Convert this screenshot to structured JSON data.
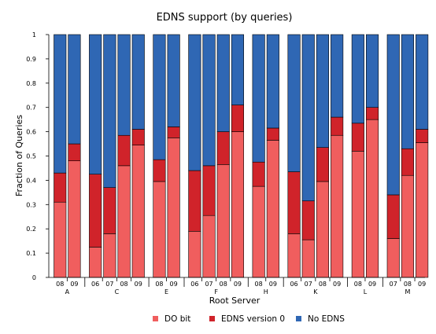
{
  "chart_data": {
    "type": "bar",
    "stacked": true,
    "title": "EDNS support (by queries)",
    "xlabel": "Root Server",
    "ylabel": "Fraction of Queries",
    "ylim": [
      0,
      1
    ],
    "yticks": [
      "0",
      "0.1",
      "0.2",
      "0.3",
      "0.4",
      "0.5",
      "0.6",
      "0.7",
      "0.8",
      "0.9",
      "1"
    ],
    "grid": false,
    "legend_position": "bottom",
    "series": [
      {
        "name": "DO bit",
        "color": "#f05e5e"
      },
      {
        "name": "EDNS version 0",
        "color": "#d0232a"
      },
      {
        "name": "No EDNS",
        "color": "#2f67b4"
      }
    ],
    "groups": [
      {
        "server": "A",
        "bars": [
          {
            "year": "08",
            "do_bit": 0.31,
            "edns0": 0.12,
            "no_edns": 0.57
          },
          {
            "year": "09",
            "do_bit": 0.48,
            "edns0": 0.07,
            "no_edns": 0.45
          }
        ]
      },
      {
        "server": "C",
        "bars": [
          {
            "year": "06",
            "do_bit": 0.125,
            "edns0": 0.3,
            "no_edns": 0.575
          },
          {
            "year": "07",
            "do_bit": 0.18,
            "edns0": 0.19,
            "no_edns": 0.63
          },
          {
            "year": "08",
            "do_bit": 0.46,
            "edns0": 0.125,
            "no_edns": 0.415
          },
          {
            "year": "09",
            "do_bit": 0.545,
            "edns0": 0.065,
            "no_edns": 0.39
          }
        ]
      },
      {
        "server": "E",
        "bars": [
          {
            "year": "08",
            "do_bit": 0.395,
            "edns0": 0.09,
            "no_edns": 0.515
          },
          {
            "year": "09",
            "do_bit": 0.575,
            "edns0": 0.045,
            "no_edns": 0.38
          }
        ]
      },
      {
        "server": "F",
        "bars": [
          {
            "year": "06",
            "do_bit": 0.19,
            "edns0": 0.25,
            "no_edns": 0.56
          },
          {
            "year": "07",
            "do_bit": 0.255,
            "edns0": 0.205,
            "no_edns": 0.54
          },
          {
            "year": "08",
            "do_bit": 0.465,
            "edns0": 0.135,
            "no_edns": 0.4
          },
          {
            "year": "09",
            "do_bit": 0.6,
            "edns0": 0.11,
            "no_edns": 0.29
          }
        ]
      },
      {
        "server": "H",
        "bars": [
          {
            "year": "08",
            "do_bit": 0.375,
            "edns0": 0.1,
            "no_edns": 0.525
          },
          {
            "year": "09",
            "do_bit": 0.565,
            "edns0": 0.05,
            "no_edns": 0.385
          }
        ]
      },
      {
        "server": "K",
        "bars": [
          {
            "year": "06",
            "do_bit": 0.18,
            "edns0": 0.255,
            "no_edns": 0.565
          },
          {
            "year": "07",
            "do_bit": 0.155,
            "edns0": 0.16,
            "no_edns": 0.685
          },
          {
            "year": "08",
            "do_bit": 0.395,
            "edns0": 0.14,
            "no_edns": 0.465
          },
          {
            "year": "09",
            "do_bit": 0.585,
            "edns0": 0.075,
            "no_edns": 0.34
          }
        ]
      },
      {
        "server": "L",
        "bars": [
          {
            "year": "08",
            "do_bit": 0.52,
            "edns0": 0.115,
            "no_edns": 0.365
          },
          {
            "year": "09",
            "do_bit": 0.65,
            "edns0": 0.05,
            "no_edns": 0.3
          }
        ]
      },
      {
        "server": "M",
        "bars": [
          {
            "year": "07",
            "do_bit": 0.16,
            "edns0": 0.18,
            "no_edns": 0.66
          },
          {
            "year": "08",
            "do_bit": 0.42,
            "edns0": 0.11,
            "no_edns": 0.47
          },
          {
            "year": "09",
            "do_bit": 0.555,
            "edns0": 0.055,
            "no_edns": 0.39
          }
        ]
      }
    ]
  }
}
